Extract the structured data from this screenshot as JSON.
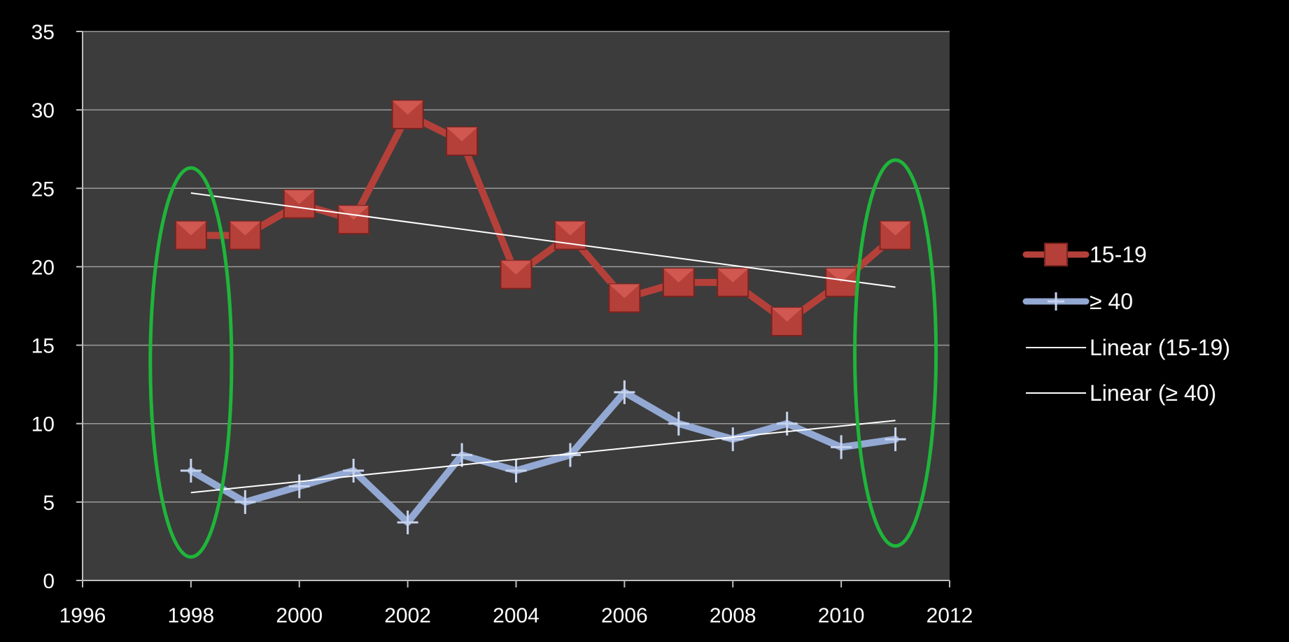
{
  "chart_data": {
    "type": "line",
    "xlim": [
      1996,
      2012
    ],
    "ylim": [
      0,
      35
    ],
    "x_ticks": [
      1996,
      1998,
      2000,
      2002,
      2004,
      2006,
      2008,
      2010,
      2012
    ],
    "y_ticks": [
      0,
      5,
      10,
      15,
      20,
      25,
      30,
      35
    ],
    "grid": "horizontal",
    "legend_position": "right",
    "x": [
      1998,
      1999,
      2000,
      2001,
      2002,
      2003,
      2004,
      2005,
      2006,
      2007,
      2008,
      2009,
      2010,
      2011
    ],
    "series": [
      {
        "name": "15-19",
        "color": "#b5403a",
        "marker": "square",
        "values": [
          22,
          22,
          24,
          23,
          29.7,
          28,
          19.5,
          22,
          18,
          19,
          19,
          16.5,
          19,
          22
        ]
      },
      {
        "name": "≥ 40",
        "color": "#93a9d3",
        "marker": "plus",
        "values": [
          7,
          5,
          6,
          7,
          3.7,
          8,
          7,
          8,
          12,
          10,
          9,
          10,
          8.5,
          9
        ]
      }
    ],
    "trendlines": [
      {
        "name": "Linear (15-19)",
        "color": "#ffffff",
        "x": [
          1998,
          2011
        ],
        "y": [
          24.7,
          18.7
        ]
      },
      {
        "name": "Linear (≥ 40)",
        "color": "#ffffff",
        "x": [
          1998,
          2011
        ],
        "y": [
          5.6,
          10.2
        ]
      }
    ],
    "annotations": [
      {
        "type": "ellipse",
        "color": "#1fb53a",
        "center_x": 1998,
        "center_y": 13.9,
        "half_width_years": 0.75,
        "half_height": 12.4
      },
      {
        "type": "ellipse",
        "color": "#1fb53a",
        "center_x": 2011,
        "center_y": 14.5,
        "half_width_years": 0.75,
        "half_height": 12.3
      }
    ]
  }
}
